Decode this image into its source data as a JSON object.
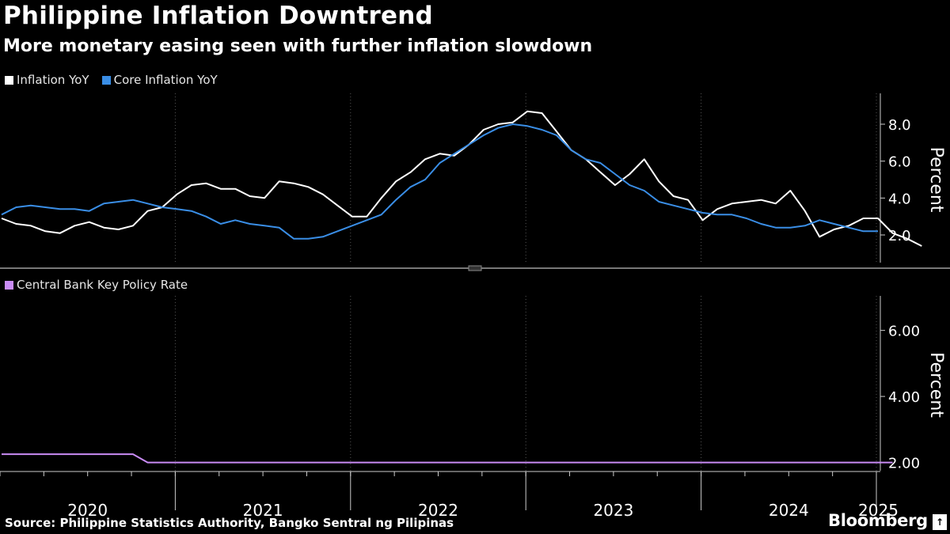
{
  "header": {
    "title": "Philippine Inflation Downtrend",
    "subtitle": "More monetary easing seen with further inflation slowdown"
  },
  "footer": {
    "source": "Source: Philippine Statistics Authority, Bangko Sentral ng Pilipinas",
    "brand": "Bloomberg",
    "brand_badge": "↑"
  },
  "colors": {
    "background": "#000000",
    "inflation": "#ffffff",
    "core": "#3a8ee6",
    "policy": "#c98bf5",
    "grid": "#555555",
    "axis": "#cccccc"
  },
  "chart_data": [
    {
      "type": "line",
      "title": "Inflation",
      "ylabel": "Percent",
      "ylim": [
        0.5,
        9.5
      ],
      "yticks": [
        2.0,
        4.0,
        6.0,
        8.0
      ],
      "ytick_labels": [
        "2.0",
        "4.0",
        "6.0",
        "8.0"
      ],
      "x_start": "2020-01",
      "series": [
        {
          "name": "Inflation YoY",
          "color": "#ffffff",
          "values": [
            2.9,
            2.6,
            2.5,
            2.2,
            2.1,
            2.5,
            2.7,
            2.4,
            2.3,
            2.5,
            3.3,
            3.5,
            4.2,
            4.7,
            4.8,
            4.5,
            4.5,
            4.1,
            4.0,
            4.9,
            4.8,
            4.6,
            4.2,
            3.6,
            3.0,
            3.0,
            4.0,
            4.9,
            5.4,
            6.1,
            6.4,
            6.3,
            6.9,
            7.7,
            8.0,
            8.1,
            8.7,
            8.6,
            7.6,
            6.6,
            6.1,
            5.4,
            4.7,
            5.3,
            6.1,
            4.9,
            4.1,
            3.9,
            2.8,
            3.4,
            3.7,
            3.8,
            3.9,
            3.7,
            4.4,
            3.3,
            1.9,
            2.3,
            2.5,
            2.9,
            2.9,
            2.1,
            1.8,
            1.4
          ]
        },
        {
          "name": "Core Inflation YoY",
          "color": "#3a8ee6",
          "values": [
            3.1,
            3.5,
            3.6,
            3.5,
            3.4,
            3.4,
            3.3,
            3.7,
            3.8,
            3.9,
            3.7,
            3.5,
            3.4,
            3.3,
            3.0,
            2.6,
            2.8,
            2.6,
            2.5,
            2.4,
            1.8,
            1.8,
            1.9,
            2.2,
            2.5,
            2.8,
            3.1,
            3.9,
            4.6,
            5.0,
            5.9,
            6.4,
            6.9,
            7.4,
            7.8,
            8.0,
            7.9,
            7.7,
            7.4,
            6.6,
            6.1,
            5.9,
            5.3,
            4.7,
            4.4,
            3.8,
            3.6,
            3.4,
            3.2,
            3.1,
            3.1,
            2.9,
            2.6,
            2.4,
            2.4,
            2.5,
            2.8,
            2.6,
            2.4,
            2.2,
            2.2
          ]
        }
      ]
    },
    {
      "type": "line",
      "title": "Policy Rate",
      "ylabel": "Percent",
      "ylim": [
        1.75,
        6.95
      ],
      "yticks": [
        2.0,
        4.0,
        6.0
      ],
      "ytick_labels": [
        "2.00",
        "4.00",
        "6.00"
      ],
      "x_start": "2020-01",
      "series": [
        {
          "name": "Central Bank Key Policy Rate",
          "color": "#c98bf5",
          "values": [
            2.25,
            2.25,
            2.25,
            2.25,
            2.25,
            2.25,
            2.25,
            2.25,
            2.25,
            2.25,
            2.0,
            2.0,
            2.0,
            2.0,
            2.0,
            2.0,
            2.0,
            2.0,
            2.0,
            2.0,
            2.0,
            2.0,
            2.0,
            2.0,
            2.0,
            2.0,
            2.0,
            2.0,
            2.0,
            2.0,
            2.0,
            2.0,
            2.0,
            2.0,
            2.0,
            2.0,
            2.0,
            2.0,
            2.0,
            2.0,
            2.0,
            2.0,
            2.0,
            2.0,
            2.0,
            2.0,
            2.0,
            2.0,
            2.0,
            2.0,
            2.0,
            2.0,
            2.0,
            2.0,
            2.0,
            2.0,
            2.0,
            2.0,
            2.0,
            2.0,
            2.0,
            2.0
          ]
        }
      ]
    }
  ],
  "x_axis": {
    "years": [
      "2020",
      "2021",
      "2022",
      "2023",
      "2024",
      "2025"
    ]
  }
}
